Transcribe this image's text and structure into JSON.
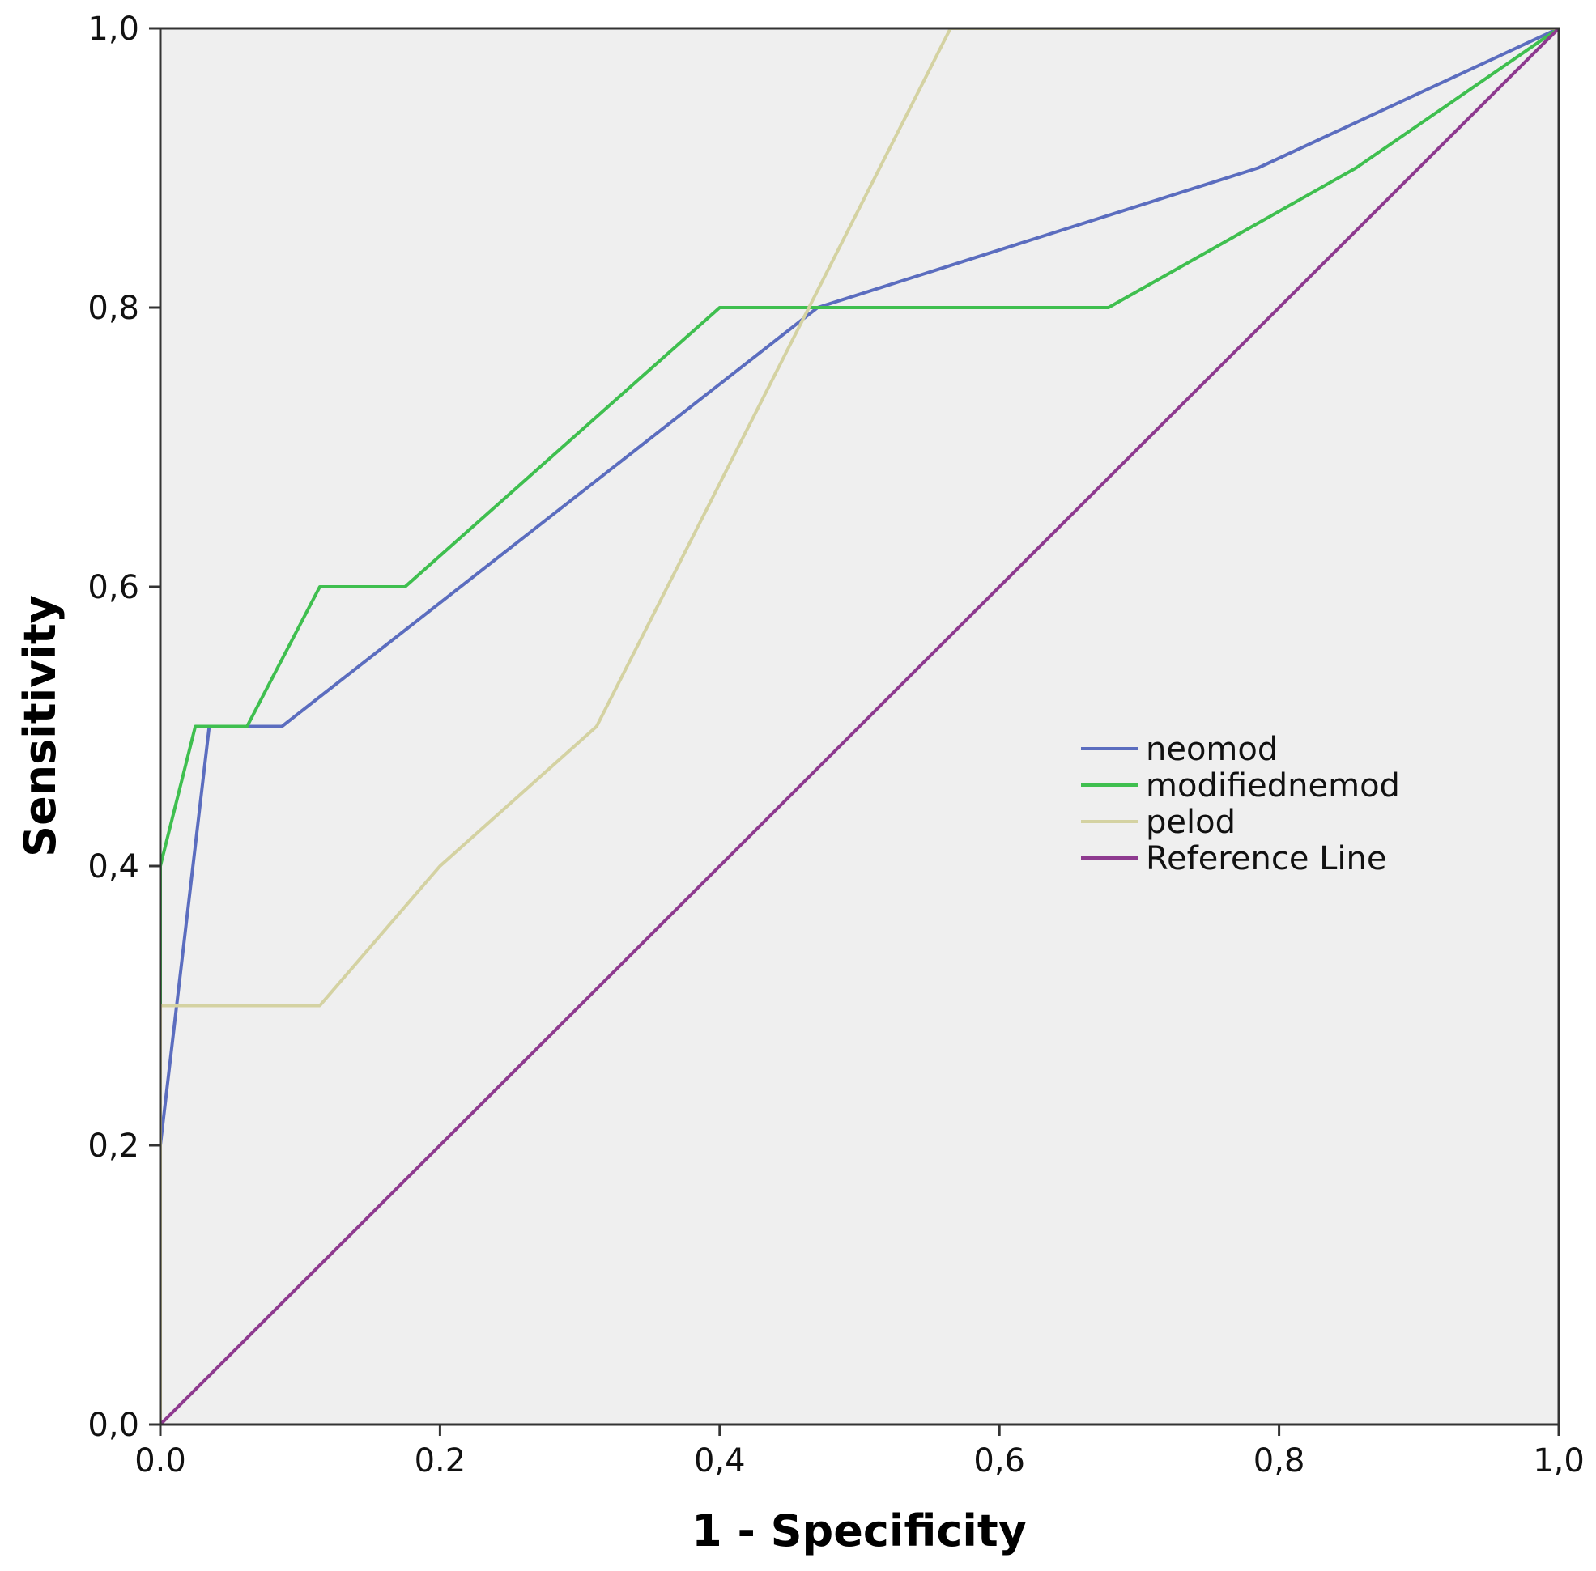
{
  "chart_data": {
    "type": "line",
    "title": "",
    "xlabel": "1 - Specificity",
    "ylabel": "Sensitivity",
    "xlim": [
      0,
      1
    ],
    "ylim": [
      0,
      1
    ],
    "x_ticks": [
      {
        "value": 0.0,
        "label": "0.0"
      },
      {
        "value": 0.2,
        "label": "0.2"
      },
      {
        "value": 0.4,
        "label": "0,4"
      },
      {
        "value": 0.6,
        "label": "0,6"
      },
      {
        "value": 0.8,
        "label": "0,8"
      },
      {
        "value": 1.0,
        "label": "1,0"
      }
    ],
    "y_ticks": [
      {
        "value": 0.0,
        "label": "0,0"
      },
      {
        "value": 0.2,
        "label": "0,2"
      },
      {
        "value": 0.4,
        "label": "0,4"
      },
      {
        "value": 0.6,
        "label": "0,6"
      },
      {
        "value": 0.8,
        "label": "0,8"
      },
      {
        "value": 1.0,
        "label": "1,0"
      }
    ],
    "grid": false,
    "legend_position": "right-middle",
    "background_color": "#efefef",
    "series": [
      {
        "name": "neomod",
        "color": "#5b6dbf",
        "points": [
          [
            0,
            0
          ],
          [
            0,
            0.2
          ],
          [
            0.035,
            0.5
          ],
          [
            0.087,
            0.5
          ],
          [
            0.47,
            0.8
          ],
          [
            0.785,
            0.9
          ],
          [
            1,
            1
          ]
        ]
      },
      {
        "name": "modifiednemod",
        "color": "#3fbf4f",
        "points": [
          [
            0,
            0
          ],
          [
            0,
            0.4
          ],
          [
            0.025,
            0.5
          ],
          [
            0.062,
            0.5
          ],
          [
            0.114,
            0.6
          ],
          [
            0.175,
            0.6
          ],
          [
            0.4,
            0.8
          ],
          [
            0.678,
            0.8
          ],
          [
            0.855,
            0.9
          ],
          [
            1,
            1
          ]
        ]
      },
      {
        "name": "pelod",
        "color": "#d4d2a2",
        "points": [
          [
            0,
            0
          ],
          [
            0,
            0.3
          ],
          [
            0.114,
            0.3
          ],
          [
            0.2,
            0.4
          ],
          [
            0.312,
            0.5
          ],
          [
            0.565,
            1.0
          ],
          [
            1,
            1
          ]
        ]
      },
      {
        "name": "Reference Line",
        "color": "#8e3a8f",
        "points": [
          [
            0,
            0
          ],
          [
            1,
            1
          ]
        ]
      }
    ]
  }
}
